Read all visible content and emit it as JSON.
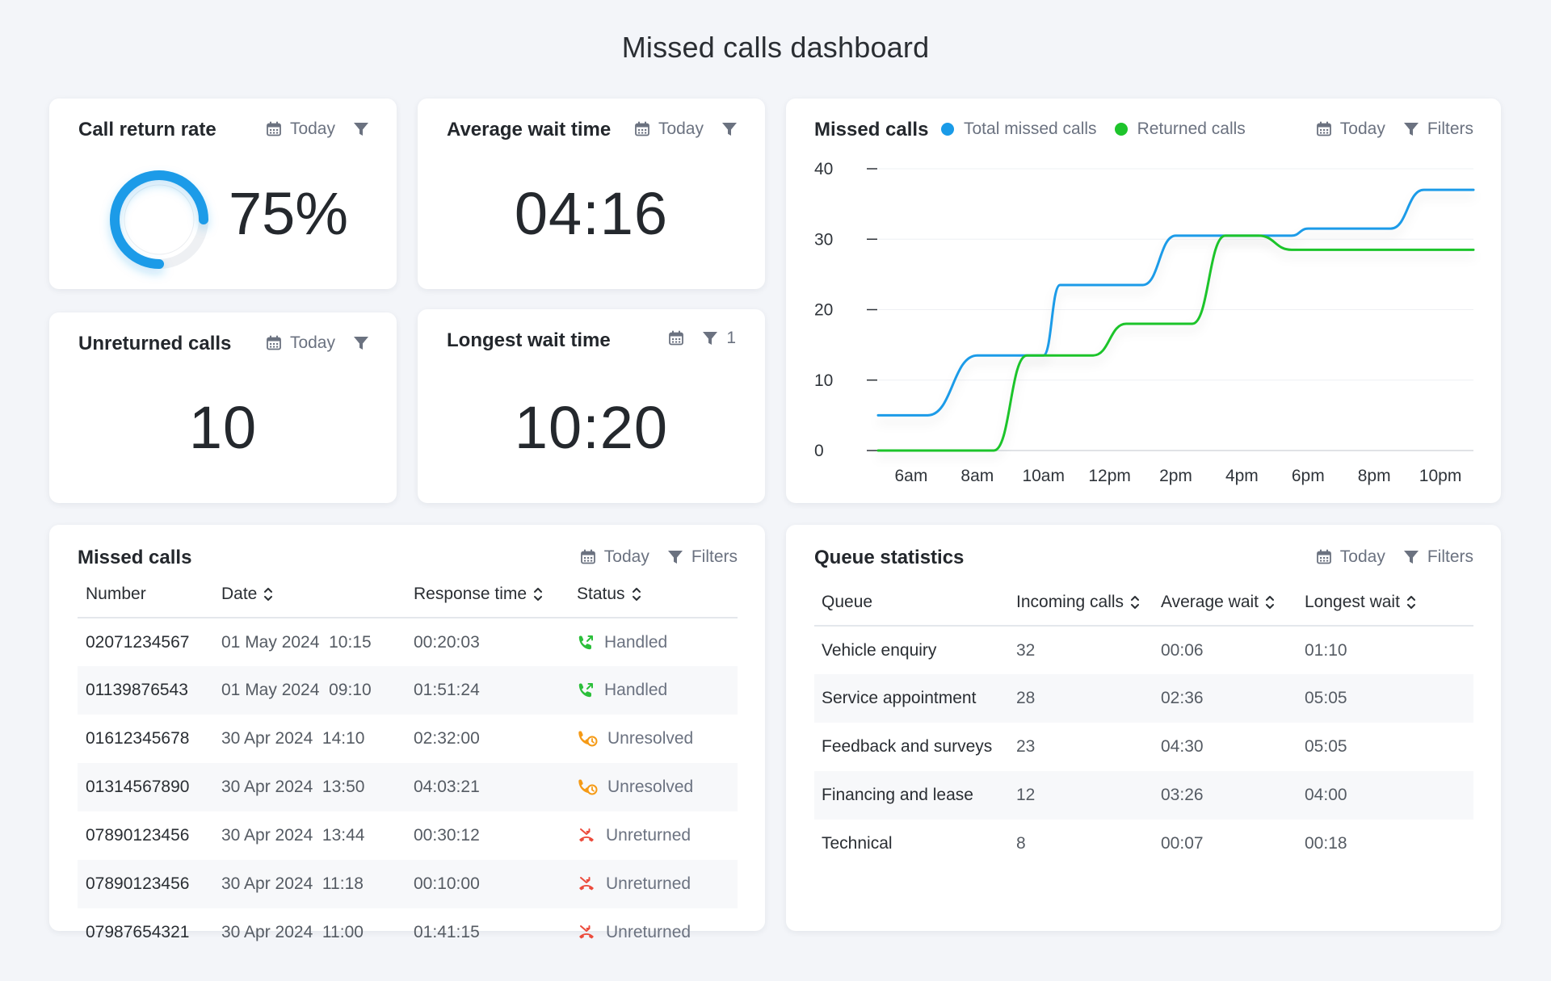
{
  "page_title": "Missed calls dashboard",
  "colors": {
    "blue": "#1a9be8",
    "green": "#1ec42c",
    "orange": "#f59a16",
    "red": "#ec4b3c",
    "green_icon": "#2bbf3a"
  },
  "call_return_rate": {
    "title": "Call return rate",
    "date_filter": "Today",
    "value": "75%",
    "fraction": 0.75
  },
  "average_wait": {
    "title": "Average wait time",
    "date_filter": "Today",
    "value": "04:16"
  },
  "unreturned": {
    "title": "Unreturned calls",
    "date_filter": "Today",
    "value": "10"
  },
  "longest_wait": {
    "title": "Longest wait time",
    "filter_count": "1",
    "value": "10:20"
  },
  "missed_chart": {
    "title": "Missed calls",
    "legend": [
      {
        "label": "Total missed calls",
        "color": "#1a9be8"
      },
      {
        "label": "Returned calls",
        "color": "#1ec42c"
      }
    ],
    "date_filter": "Today",
    "filters_label": "Filters"
  },
  "chart_data": {
    "type": "line",
    "title": "Missed calls",
    "x_tick_labels": [
      "6am",
      "8am",
      "10am",
      "12pm",
      "2pm",
      "4pm",
      "6pm",
      "8pm",
      "10pm"
    ],
    "y_tick_labels": [
      "40",
      "30",
      "20",
      "10",
      "0"
    ],
    "ylim": [
      0,
      40
    ],
    "xlim_hours": [
      5,
      23
    ],
    "grid": true,
    "legend_position": "top",
    "series": [
      {
        "name": "Total missed calls",
        "color": "#1a9be8",
        "points": [
          [
            5,
            5
          ],
          [
            6.5,
            5
          ],
          [
            8,
            13.5
          ],
          [
            10,
            13.5
          ],
          [
            10.5,
            23.5
          ],
          [
            13,
            23.5
          ],
          [
            14,
            30.5
          ],
          [
            17.5,
            30.5
          ],
          [
            18,
            31.5
          ],
          [
            20.5,
            31.5
          ],
          [
            21.5,
            37
          ],
          [
            23,
            37
          ]
        ]
      },
      {
        "name": "Returned calls",
        "color": "#1ec42c",
        "points": [
          [
            5,
            0
          ],
          [
            8.5,
            0
          ],
          [
            9.5,
            13.5
          ],
          [
            11.5,
            13.5
          ],
          [
            12.5,
            18
          ],
          [
            14.5,
            18
          ],
          [
            15.5,
            30.5
          ],
          [
            16.5,
            30.5
          ],
          [
            17.5,
            28.5
          ],
          [
            23,
            28.5
          ]
        ]
      }
    ]
  },
  "missed_table": {
    "title": "Missed calls",
    "date_filter": "Today",
    "filters_label": "Filters",
    "columns": [
      "Number",
      "Date",
      "Response time",
      "Status"
    ],
    "rows": [
      {
        "number": "02071234567",
        "date": "01 May 2024  10:15",
        "response": "00:20:03",
        "status": "Handled",
        "kind": "handled"
      },
      {
        "number": "01139876543",
        "date": "01 May 2024  09:10",
        "response": "01:51:24",
        "status": "Handled",
        "kind": "handled"
      },
      {
        "number": "01612345678",
        "date": "30 Apr 2024  14:10",
        "response": "02:32:00",
        "status": "Unresolved",
        "kind": "unresolved"
      },
      {
        "number": "01314567890",
        "date": "30 Apr 2024  13:50",
        "response": "04:03:21",
        "status": "Unresolved",
        "kind": "unresolved"
      },
      {
        "number": "07890123456",
        "date": "30 Apr 2024  13:44",
        "response": "00:30:12",
        "status": "Unreturned",
        "kind": "unreturned"
      },
      {
        "number": "07890123456",
        "date": "30 Apr 2024  11:18",
        "response": "00:10:00",
        "status": "Unreturned",
        "kind": "unreturned"
      },
      {
        "number": "07987654321",
        "date": "30 Apr 2024  11:00",
        "response": "01:41:15",
        "status": "Unreturned",
        "kind": "unreturned"
      }
    ]
  },
  "queue_table": {
    "title": "Queue statistics",
    "date_filter": "Today",
    "filters_label": "Filters",
    "columns": [
      "Queue",
      "Incoming calls",
      "Average wait",
      "Longest wait"
    ],
    "rows": [
      {
        "queue": "Vehicle enquiry",
        "incoming": "32",
        "avg": "00:06",
        "longest": "01:10"
      },
      {
        "queue": "Service appointment",
        "incoming": "28",
        "avg": "02:36",
        "longest": "05:05"
      },
      {
        "queue": "Feedback and surveys",
        "incoming": "23",
        "avg": "04:30",
        "longest": "05:05"
      },
      {
        "queue": "Financing and lease",
        "incoming": "12",
        "avg": "03:26",
        "longest": "04:00"
      },
      {
        "queue": "Technical",
        "incoming": "8",
        "avg": "00:07",
        "longest": "00:18"
      }
    ]
  }
}
